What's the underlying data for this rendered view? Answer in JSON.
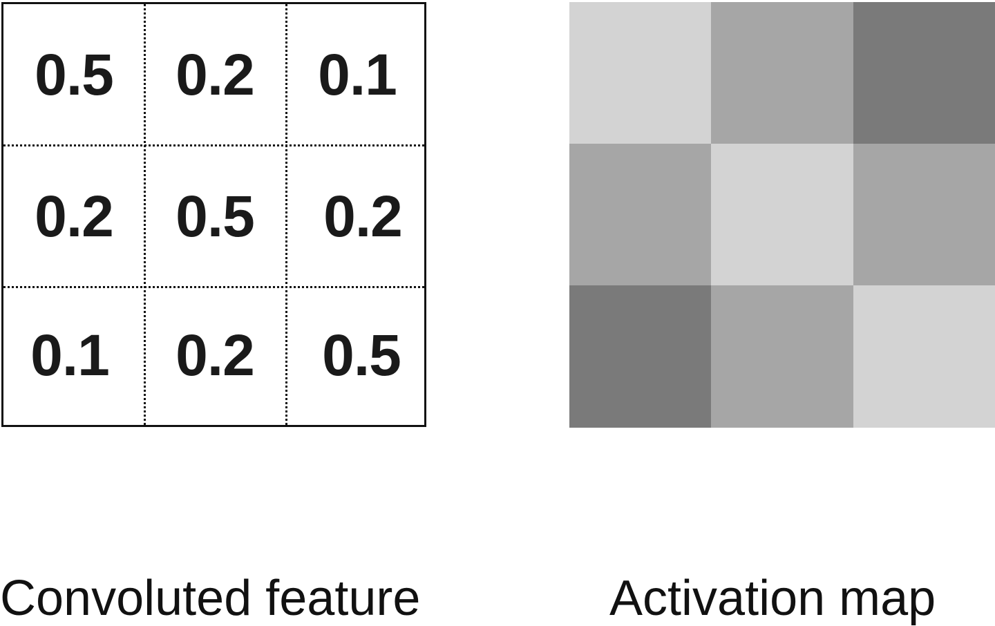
{
  "convoluted_feature": {
    "caption": "Convoluted feature",
    "values": [
      [
        "0.5",
        "0.2",
        "0.1"
      ],
      [
        "0.2",
        "0.5",
        "0.2"
      ],
      [
        "0.1",
        "0.2",
        "0.5"
      ]
    ]
  },
  "activation_map": {
    "caption": "Activation map",
    "colors": [
      [
        "#d3d3d3",
        "#a6a6a6",
        "#7a7a7a"
      ],
      [
        "#a6a6a6",
        "#d3d3d3",
        "#a6a6a6"
      ],
      [
        "#7a7a7a",
        "#a6a6a6",
        "#d3d3d3"
      ]
    ]
  }
}
